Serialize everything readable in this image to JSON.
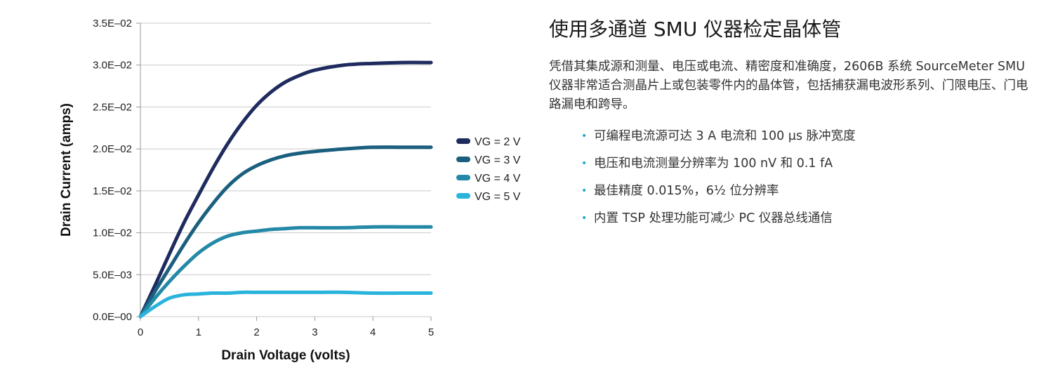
{
  "chart_data": {
    "type": "line",
    "xlabel": "Drain Voltage (volts)",
    "ylabel": "Drain Current (amps)",
    "xlim": [
      0,
      5
    ],
    "ylim": [
      0,
      0.035
    ],
    "x_ticks": [
      "0",
      "1",
      "2",
      "3",
      "4",
      "5"
    ],
    "y_ticks": [
      "0.0E–00",
      "5.0E–03",
      "1.0E–02",
      "1.5E–02",
      "2.0E–02",
      "2.5E–02",
      "3.0E–02",
      "3.5E–02"
    ],
    "grid": "horizontal",
    "legend_position": "right",
    "x": [
      0,
      0.25,
      0.5,
      0.75,
      1.0,
      1.25,
      1.5,
      1.75,
      2.0,
      2.25,
      2.5,
      2.75,
      3.0,
      3.5,
      4.0,
      4.5,
      5.0
    ],
    "series": [
      {
        "name": "VG = 2 V",
        "color": "#1f2b5e",
        "values": [
          0,
          0.0037,
          0.0075,
          0.0112,
          0.0145,
          0.0177,
          0.0206,
          0.0231,
          0.0252,
          0.0268,
          0.028,
          0.0288,
          0.0294,
          0.03,
          0.0302,
          0.0303,
          0.0303
        ]
      },
      {
        "name": "VG = 3 V",
        "color": "#1b5f7f",
        "values": [
          0,
          0.003,
          0.0058,
          0.0086,
          0.0112,
          0.0135,
          0.0155,
          0.017,
          0.018,
          0.0187,
          0.0192,
          0.0195,
          0.0197,
          0.02,
          0.0202,
          0.0202,
          0.0202
        ]
      },
      {
        "name": "VG = 4 V",
        "color": "#2389a7",
        "values": [
          0,
          0.0022,
          0.0042,
          0.006,
          0.0076,
          0.0088,
          0.0096,
          0.01,
          0.0102,
          0.0104,
          0.0105,
          0.0106,
          0.0106,
          0.0106,
          0.0107,
          0.0107,
          0.0107
        ]
      },
      {
        "name": "VG = 5 V",
        "color": "#2ab4dc",
        "values": [
          0,
          0.0012,
          0.0022,
          0.0026,
          0.0027,
          0.0028,
          0.0028,
          0.0029,
          0.0029,
          0.0029,
          0.0029,
          0.0029,
          0.0029,
          0.0029,
          0.0028,
          0.0028,
          0.0028
        ]
      }
    ]
  },
  "panel": {
    "title": "使用多通道 SMU 仪器检定晶体管",
    "description": "凭借其集成源和测量、电压或电流、精密度和准确度，2606B 系统 SourceMeter SMU 仪器非常适合测晶片上或包装零件内的晶体管，包括捕获漏电波形系列、门限电压、门电路漏电和跨导。",
    "bullet_char": "•",
    "features": [
      "可编程电流源可达 3 A 电流和 100 µs 脉冲宽度",
      "电压和电流测量分辨率为 100 nV 和 0.1 fA",
      "最佳精度 0.015%，6½ 位分辨率",
      "内置 TSP 处理功能可减少 PC 仪器总线通信"
    ]
  }
}
